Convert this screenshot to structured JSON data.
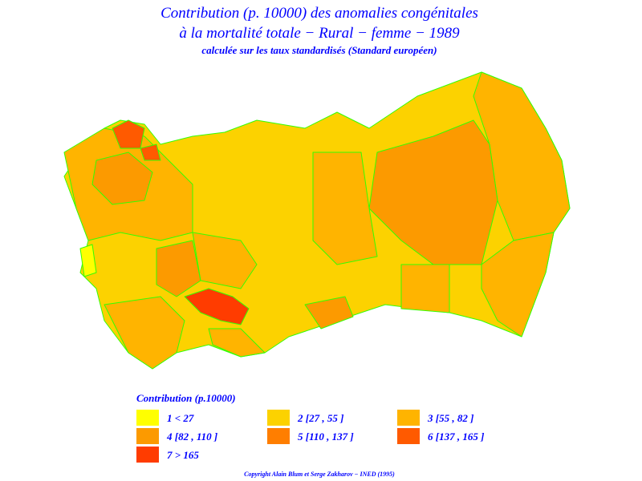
{
  "title": [
    "Contribution (p. 10000) des anomalies congénitales",
    "à la mortalité totale − Rural − femme − 1989"
  ],
  "subtitle": "calculée sur les taux standardisés (Standard européen)",
  "legend": {
    "title": "Contribution (p.10000)",
    "items": [
      {
        "label": "1  <  27",
        "color": "#ffff00"
      },
      {
        "label": "2 [27 , 55 ]",
        "color": "#fcd200"
      },
      {
        "label": "3 [55 , 82 ]",
        "color": "#ffb400"
      },
      {
        "label": "4 [82 , 110 ]",
        "color": "#fc9a00"
      },
      {
        "label": "5 [110 , 137 ]",
        "color": "#ff7e00"
      },
      {
        "label": "6 [137 , 165 ]",
        "color": "#ff5a00"
      },
      {
        "label": "7  >  165",
        "color": "#ff3c00"
      }
    ]
  },
  "copyright": "Copyright Alain Blum et Serge Zakharov − INED (1995)"
}
